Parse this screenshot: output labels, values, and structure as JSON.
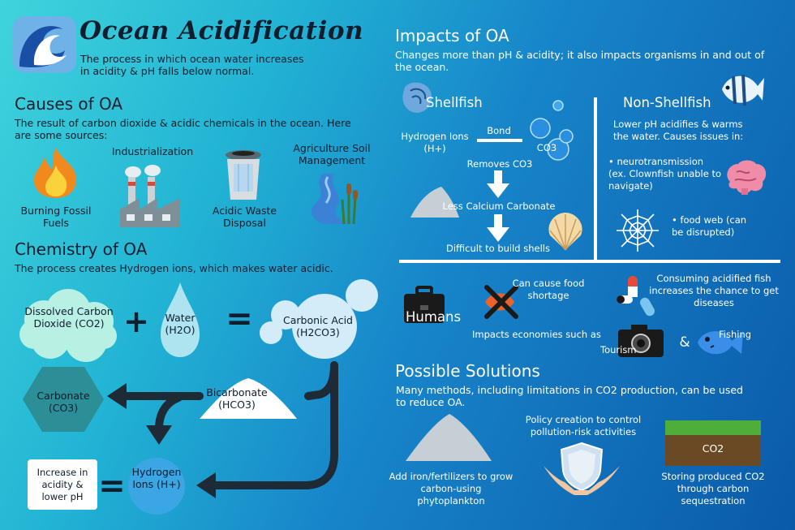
{
  "header": {
    "title": "Ocean Acidification",
    "subtitle": "The process in which ocean water increases in acidity & pH falls below normal."
  },
  "causes": {
    "heading": "Causes of OA",
    "description": "The result of carbon dioxide & acidic chemicals in the ocean. Here are some sources:",
    "sources": [
      "Burning Fossil Fuels",
      "Industrialization",
      "Acidic Waste Disposal",
      "Agriculture Soil Management"
    ]
  },
  "chemistry": {
    "heading": "Chemistry of OA",
    "description": "The process creates Hydrogen ions, which makes water acidic.",
    "co2": "Dissolved Carbon Dioxide (CO2)",
    "plus": "+",
    "water": "Water (H2O)",
    "equals": "=",
    "carbonic_acid": "Carbonic Acid (H2CO3)",
    "bicarbonate": "Bicarbonate (HCO3)",
    "carbonate": "Carbonate (CO3)",
    "hydrogen": "Hydrogen Ions (H+)",
    "result": "Increase in acidity & lower pH"
  },
  "impacts": {
    "heading": "Impacts of OA",
    "description": "Changes more than pH & acidity; it also impacts organisms in and out of the ocean.",
    "shellfish": {
      "heading": "Shellfish",
      "hydrogen": "Hydrogen Ions (H+)",
      "bond": "Bond",
      "co3": "CO3",
      "removes": "Removes CO3",
      "less": "Less Calcium Carbonate",
      "difficult": "Difficult to build shells"
    },
    "nonshellfish": {
      "heading": "Non-Shellfish",
      "description": "Lower pH acidifies & warms the water. Causes issues in:",
      "bullet1": "• neurotransmission (ex. Clownfish unable to navigate)",
      "bullet2": "• food web (can be disrupted)"
    },
    "humans": {
      "heading": "Humans",
      "food": "Can cause food shortage",
      "disease": "Consuming acidified fish increases the chance to get diseases",
      "economy": "Impacts economies such as",
      "tourism": "Tourism",
      "amp": "&",
      "fishing": "Fishing"
    }
  },
  "solutions": {
    "heading": "Possible Solutions",
    "description": "Many methods, including limitations in CO2 production, can be used to reduce OA.",
    "iron": "Add iron/fertilizers to grow carbon-using phytoplankton",
    "policy": "Policy creation to control pollution-risk activities",
    "storing": "Storing produced CO2 through carbon sequestration",
    "co2_label": "CO2"
  },
  "colors": {
    "dark": "#0e1e2e",
    "bubble": "#b8f0e4",
    "hex": "#2c8e96",
    "arrow": "#1e2a36"
  }
}
